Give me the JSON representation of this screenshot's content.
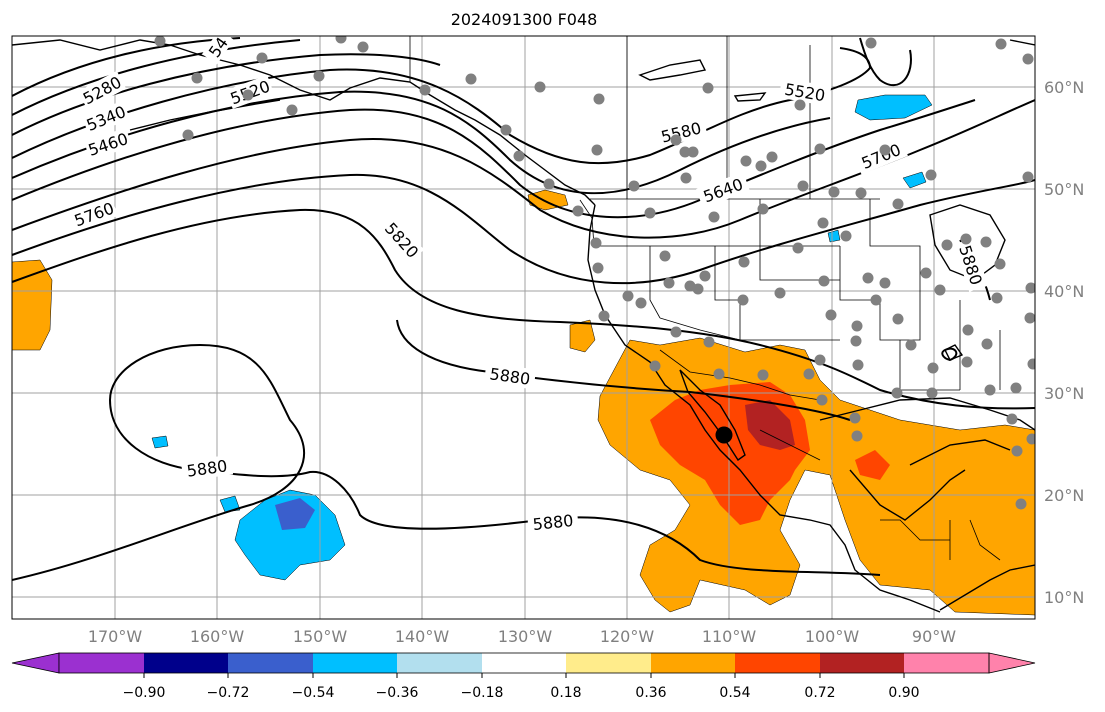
{
  "title": "2024091300 F048",
  "lon_labels": [
    "170°W",
    "160°W",
    "150°W",
    "140°W",
    "130°W",
    "120°W",
    "110°W",
    "100°W",
    "90°W"
  ],
  "lat_labels": [
    "60°N",
    "50°N",
    "40°N",
    "30°N",
    "20°N",
    "10°N"
  ],
  "contour_labels": [
    "5280",
    "5340",
    "5460",
    "5520",
    "5760",
    "5820",
    "5880",
    "5880",
    "5880",
    "5520",
    "5580",
    "5640",
    "5700",
    "5880",
    "54"
  ],
  "colorbar": {
    "ticks": [
      "−0.90",
      "−0.72",
      "−0.54",
      "−0.36",
      "−0.18",
      "0.18",
      "0.36",
      "0.54",
      "0.72",
      "0.90"
    ],
    "colors": [
      "#9b30d0",
      "#00008b",
      "#3a5fcd",
      "#00bfff",
      "#b2dfee",
      "#ffffff",
      "#ffec8b",
      "#ffa500",
      "#ff4500",
      "#b22222",
      "#ff82ab"
    ]
  },
  "colors": {
    "orange": "#ffa500",
    "red": "#ff4500",
    "darkred": "#b22222",
    "lightblue": "#00bfff",
    "blue": "#3a5fcd",
    "station_dot": "#808080",
    "center_dot": "#000000"
  }
}
